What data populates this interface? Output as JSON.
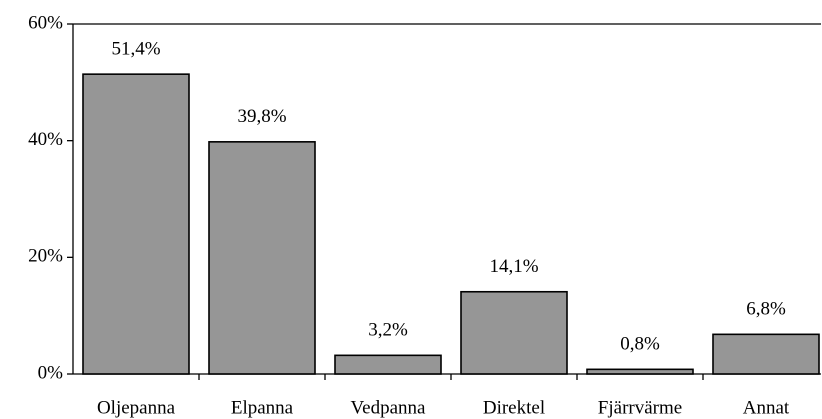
{
  "chart_data": {
    "type": "bar",
    "categories": [
      "Oljepanna",
      "Elpanna",
      "Vedpanna",
      "Direktel",
      "Fjärrvärme",
      "Annat"
    ],
    "values": [
      51.4,
      39.8,
      3.2,
      14.1,
      0.8,
      6.8
    ],
    "value_labels": [
      "51,4%",
      "39,8%",
      "3,2%",
      "14,1%",
      "0,8%",
      "6,8%"
    ],
    "color": "#969696",
    "ylim": [
      0,
      60
    ],
    "yticks": [
      {
        "value": 0,
        "label": "0%"
      },
      {
        "value": 20,
        "label": "20%"
      },
      {
        "value": 40,
        "label": "40%"
      },
      {
        "value": 60,
        "label": "60%"
      }
    ],
    "grid": false
  }
}
